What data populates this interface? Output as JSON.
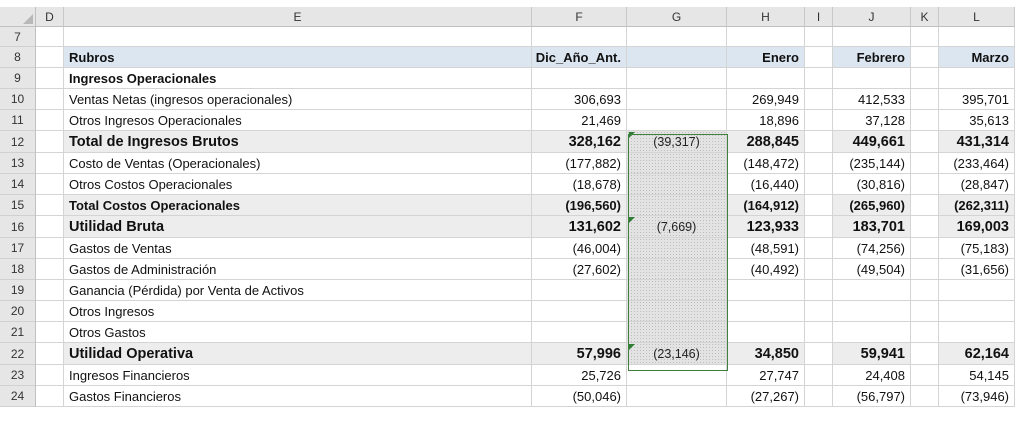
{
  "columns": [
    "D",
    "E",
    "F",
    "G",
    "H",
    "I",
    "J",
    "K",
    "L"
  ],
  "rows": [
    {
      "n": "7",
      "label": "",
      "F": "",
      "G": "",
      "H": "",
      "J": "",
      "L": "",
      "style": "blank"
    },
    {
      "n": "8",
      "label": "Rubros",
      "F": "Dic_Año_Ant.",
      "G": "",
      "H": "Enero",
      "J": "Febrero",
      "L": "Marzo",
      "style": "header"
    },
    {
      "n": "9",
      "label": "Ingresos Operacionales",
      "F": "",
      "G": "",
      "H": "",
      "J": "",
      "L": "",
      "style": "section"
    },
    {
      "n": "10",
      "label": "Ventas Netas (ingresos operacionales)",
      "F": "306,693",
      "G": "",
      "H": "269,949",
      "J": "412,533",
      "L": "395,701",
      "style": "normal"
    },
    {
      "n": "11",
      "label": "Otros Ingresos Operacionales",
      "F": "21,469",
      "G": "",
      "H": "18,896",
      "J": "37,128",
      "L": "35,613",
      "style": "normal"
    },
    {
      "n": "12",
      "label": "Total de Ingresos Brutos",
      "F": "328,162",
      "G": "(39,317)",
      "H": "288,845",
      "J": "449,661",
      "L": "431,314",
      "style": "total-big"
    },
    {
      "n": "13",
      "label": "Costo de Ventas (Operacionales)",
      "F": "(177,882)",
      "G": "",
      "H": "(148,472)",
      "J": "(235,144)",
      "L": "(233,464)",
      "style": "normal"
    },
    {
      "n": "14",
      "label": "Otros Costos Operacionales",
      "F": "(18,678)",
      "G": "",
      "H": "(16,440)",
      "J": "(30,816)",
      "L": "(28,847)",
      "style": "normal"
    },
    {
      "n": "15",
      "label": "Total Costos Operacionales",
      "F": "(196,560)",
      "G": "",
      "H": "(164,912)",
      "J": "(265,960)",
      "L": "(262,311)",
      "style": "total-small"
    },
    {
      "n": "16",
      "label": "Utilidad Bruta",
      "F": "131,602",
      "G": "(7,669)",
      "H": "123,933",
      "J": "183,701",
      "L": "169,003",
      "style": "total-big"
    },
    {
      "n": "17",
      "label": "Gastos de Ventas",
      "F": "(46,004)",
      "G": "",
      "H": "(48,591)",
      "J": "(74,256)",
      "L": "(75,183)",
      "style": "normal"
    },
    {
      "n": "18",
      "label": "Gastos de Administración",
      "F": "(27,602)",
      "G": "",
      "H": "(40,492)",
      "J": "(49,504)",
      "L": "(31,656)",
      "style": "normal"
    },
    {
      "n": "19",
      "label": "Ganancia (Pérdida) por Venta de Activos",
      "F": "",
      "G": "",
      "H": "",
      "J": "",
      "L": "",
      "style": "normal"
    },
    {
      "n": "20",
      "label": "Otros Ingresos",
      "F": "",
      "G": "",
      "H": "",
      "J": "",
      "L": "",
      "style": "normal"
    },
    {
      "n": "21",
      "label": "Otros Gastos",
      "F": "",
      "G": "",
      "H": "",
      "J": "",
      "L": "",
      "style": "normal"
    },
    {
      "n": "22",
      "label": "Utilidad Operativa",
      "F": "57,996",
      "G": "(23,146)",
      "H": "34,850",
      "J": "59,941",
      "L": "62,164",
      "style": "total-big"
    },
    {
      "n": "23",
      "label": "Ingresos Financieros",
      "F": "25,726",
      "G": "",
      "H": "27,747",
      "J": "24,408",
      "L": "54,145",
      "style": "normal"
    },
    {
      "n": "24",
      "label": "Gastos Financieros",
      "F": "(50,046)",
      "G": "",
      "H": "(27,267)",
      "J": "(56,797)",
      "L": "(73,946)",
      "style": "normal"
    }
  ],
  "colors": {
    "header_fill": "#dce6f1",
    "total_fill": "#ededed",
    "selection_border": "#3f7f3f"
  }
}
